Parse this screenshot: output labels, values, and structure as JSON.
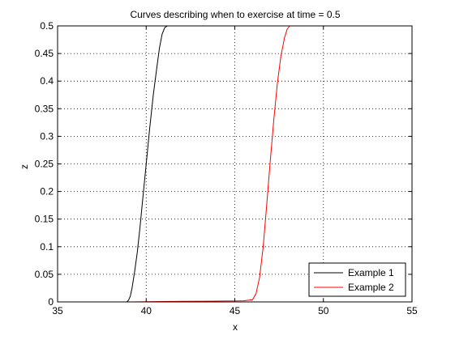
{
  "chart_data": {
    "type": "line",
    "title": "Curves describing when to exercise at time = 0.5",
    "xlabel": "x",
    "ylabel": "z",
    "xlim": [
      35,
      55
    ],
    "ylim": [
      0,
      0.5
    ],
    "xticks": [
      "35",
      "40",
      "45",
      "50",
      "55"
    ],
    "yticks": [
      "0",
      "0.05",
      "0.1",
      "0.15",
      "0.2",
      "0.25",
      "0.3",
      "0.35",
      "0.4",
      "0.45",
      "0.5"
    ],
    "grid": true,
    "legend_position": "bottom-right",
    "series": [
      {
        "name": "Example 1",
        "color": "#000000",
        "x": [
          38.9,
          39.0,
          39.1,
          39.2,
          39.35,
          39.5,
          39.65,
          39.8,
          40.0,
          40.2,
          40.4,
          40.6,
          40.75,
          40.9,
          41.05,
          41.2
        ],
        "y": [
          0.0,
          0.003,
          0.01,
          0.025,
          0.055,
          0.09,
          0.135,
          0.185,
          0.25,
          0.315,
          0.375,
          0.425,
          0.46,
          0.485,
          0.497,
          0.5
        ]
      },
      {
        "name": "Example 2",
        "color": "#ff0000",
        "x": [
          39.2,
          40.0,
          42.0,
          44.0,
          45.5,
          46.0,
          46.2,
          46.4,
          46.6,
          46.8,
          47.0,
          47.2,
          47.4,
          47.6,
          47.8,
          47.95,
          48.1
        ],
        "y": [
          0.0,
          0.0005,
          0.001,
          0.0015,
          0.002,
          0.004,
          0.015,
          0.045,
          0.1,
          0.175,
          0.255,
          0.33,
          0.395,
          0.445,
          0.478,
          0.494,
          0.5
        ]
      }
    ]
  }
}
